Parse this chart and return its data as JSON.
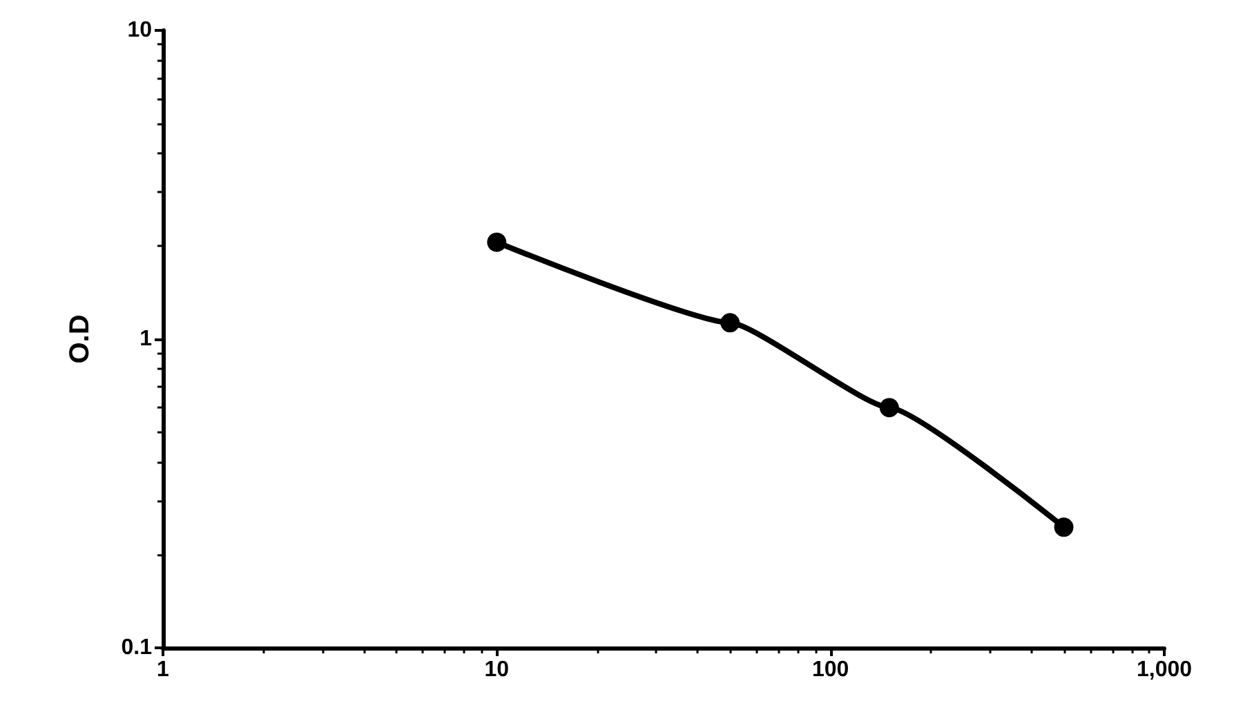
{
  "chart_data": {
    "type": "line",
    "ylabel": "O.D",
    "x": [
      10,
      50,
      150,
      500
    ],
    "series": [
      {
        "color": "#000000",
        "values": [
          2.06,
          1.13,
          0.6,
          0.246
        ]
      }
    ],
    "xlim": [
      1,
      1000
    ],
    "ylim": [
      0.1,
      10
    ],
    "xticks": [
      1,
      10,
      100,
      {
        "value": 1000,
        "label": "1,000"
      }
    ],
    "yticks": [
      0.1,
      1,
      10
    ],
    "log": "xy",
    "grid": false,
    "marker": "circle",
    "line_style": "solid"
  }
}
